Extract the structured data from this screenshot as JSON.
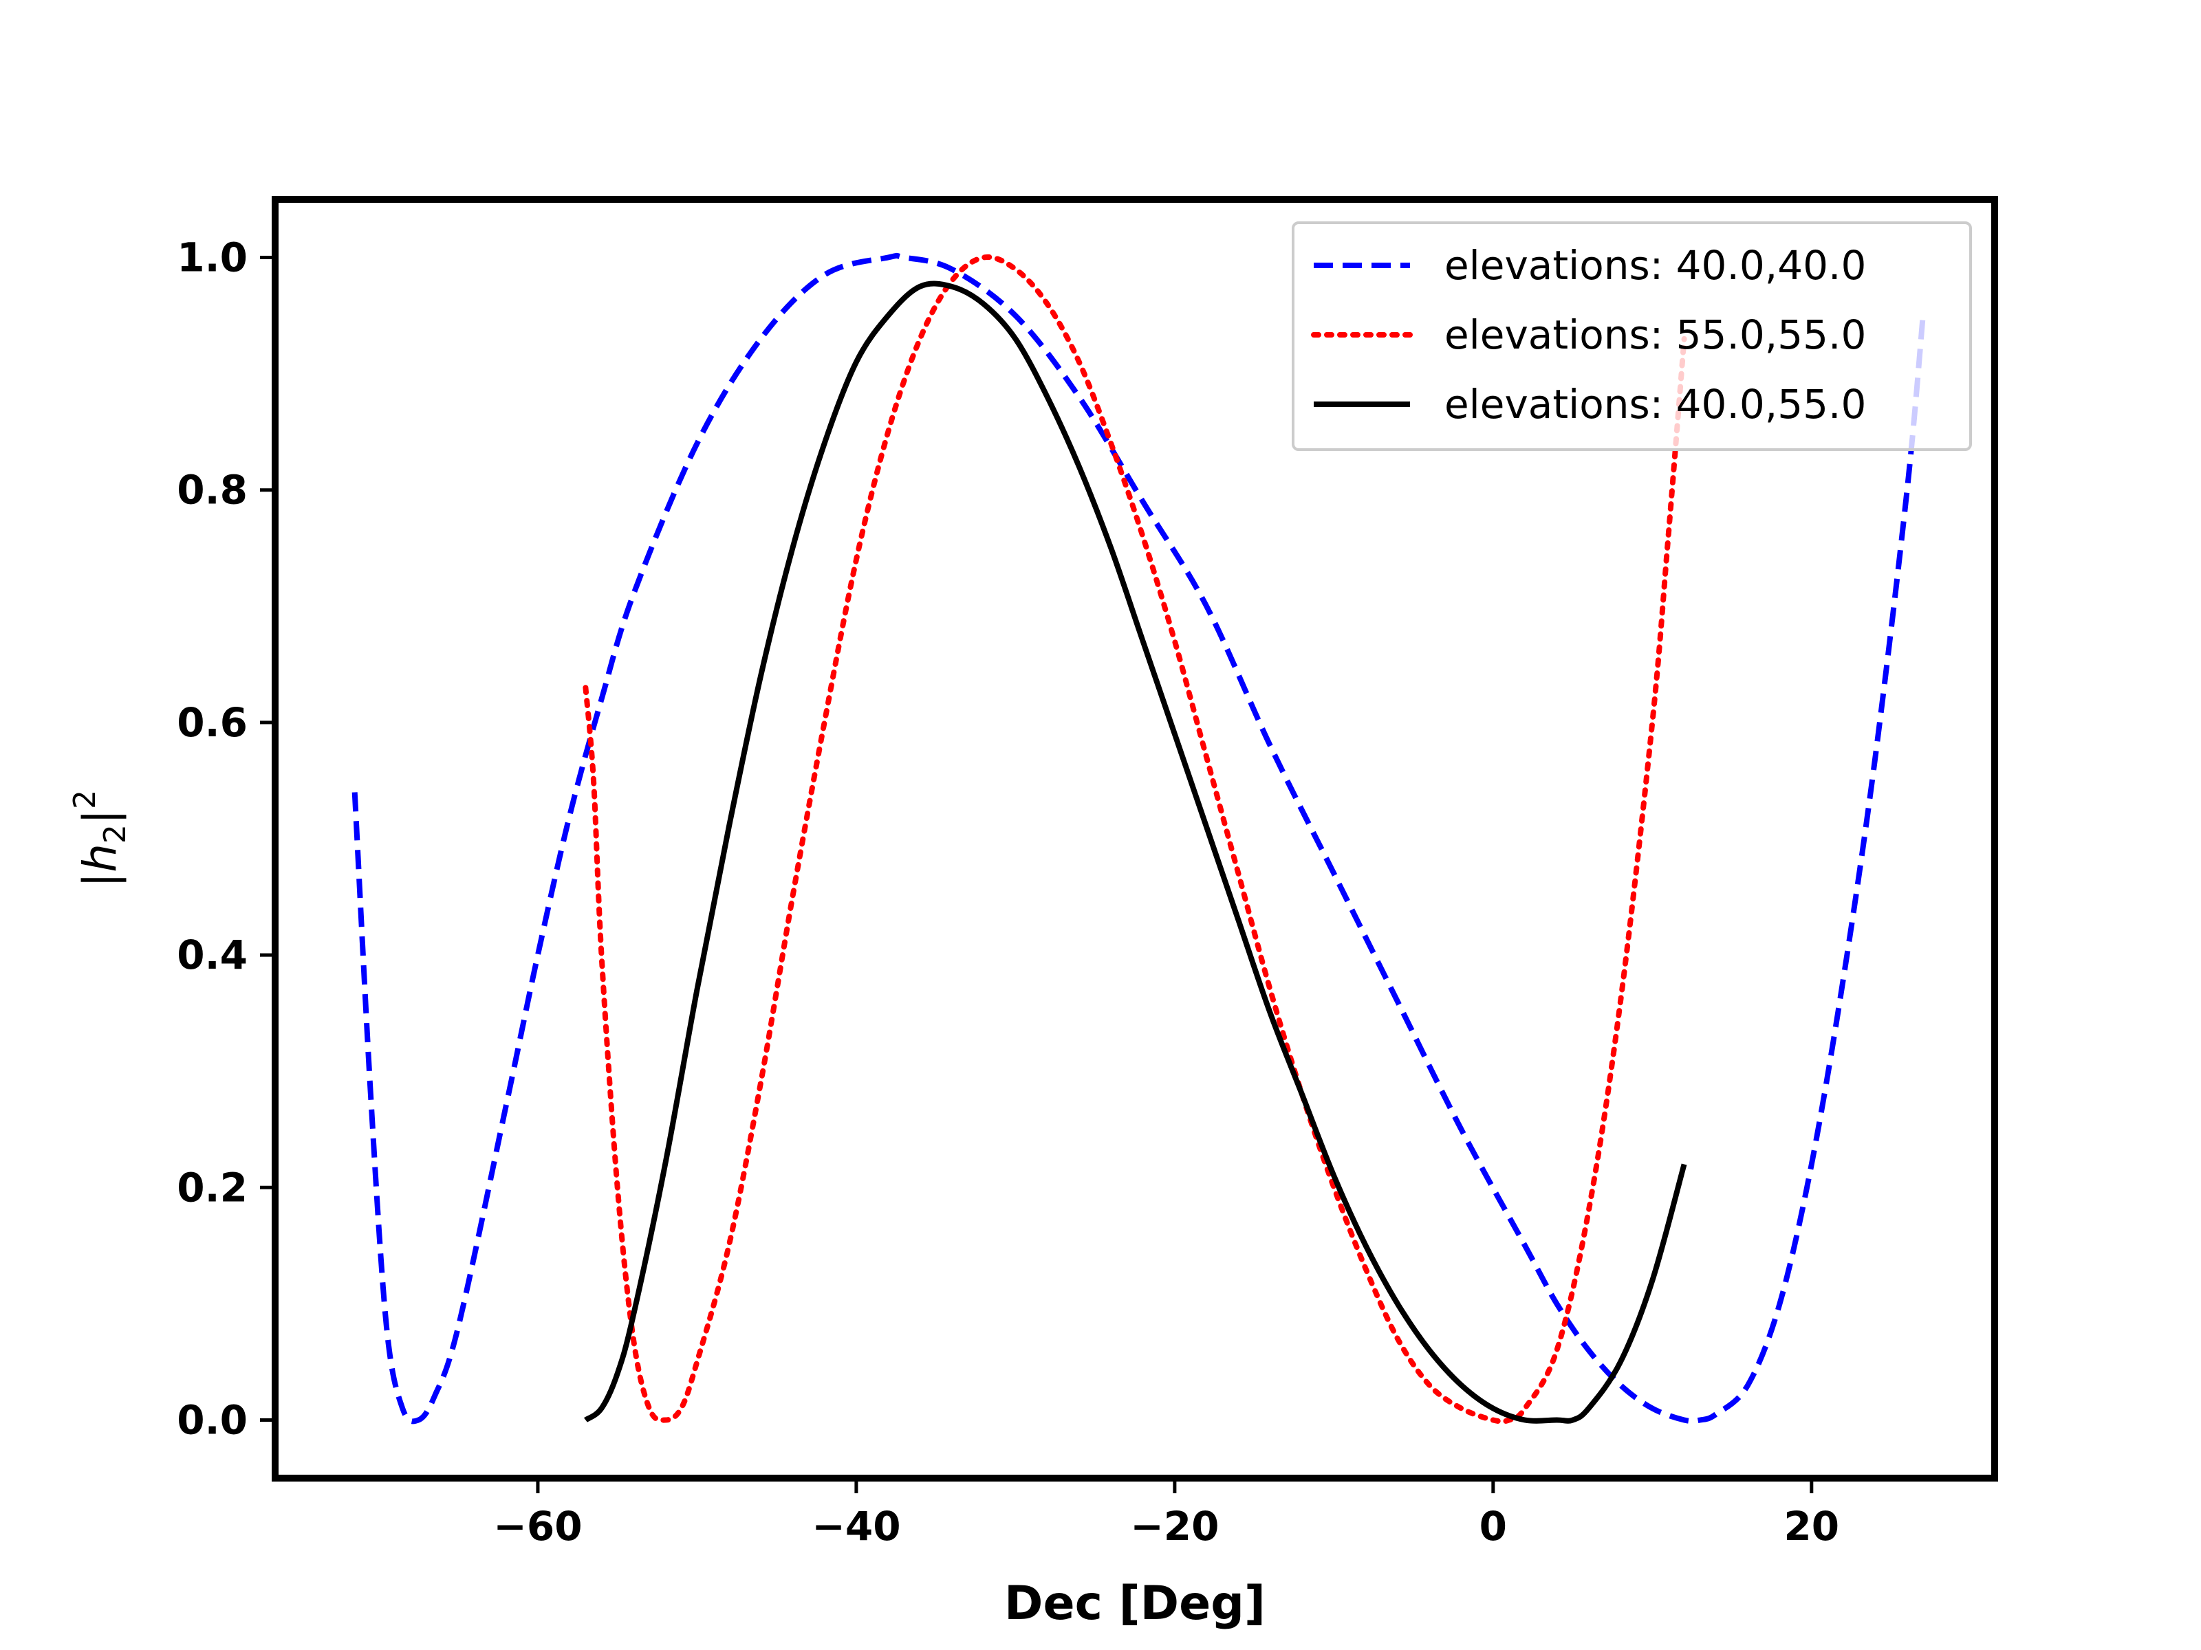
{
  "chart_data": {
    "type": "line",
    "title": "",
    "xlabel": "Dec [Deg]",
    "ylabel": "|h2|²",
    "ylabel_parts": {
      "left_bar": "|",
      "symbol": "h",
      "subscript": "2",
      "right_bar": "|",
      "superscript": "2"
    },
    "xlim": [
      -76.5,
      31.5
    ],
    "ylim": [
      -0.05,
      1.05
    ],
    "xticks": [
      -60,
      -40,
      -20,
      0,
      20
    ],
    "xtick_labels": [
      "−60",
      "−40",
      "−20",
      "0",
      "20"
    ],
    "yticks": [
      0.0,
      0.2,
      0.4,
      0.6,
      0.8,
      1.0
    ],
    "ytick_labels": [
      "0.0",
      "0.2",
      "0.4",
      "0.6",
      "0.8",
      "1.0"
    ],
    "grid": false,
    "legend_position": "top-right",
    "series": [
      {
        "name": "elevations: 40.0,40.0",
        "color": "#0000ff",
        "style": "dashed",
        "x": [
          -71.5,
          -70.5,
          -69.5,
          -68.5,
          -67.5,
          -66.5,
          -65,
          -62,
          -60,
          -58,
          -56,
          -54,
          -50,
          -46,
          -42,
          -38,
          -37,
          -34,
          -30,
          -26,
          -22,
          -18,
          -14,
          -10,
          -6,
          -2,
          2,
          4,
          6,
          8,
          10,
          12,
          13,
          14,
          16,
          18,
          20,
          22,
          24,
          26,
          27
        ],
        "y": [
          0.54,
          0.28,
          0.08,
          0.01,
          0.0,
          0.02,
          0.08,
          0.27,
          0.4,
          0.52,
          0.62,
          0.71,
          0.84,
          0.93,
          0.985,
          1.0,
          1.0,
          0.99,
          0.95,
          0.88,
          0.79,
          0.7,
          0.58,
          0.47,
          0.36,
          0.25,
          0.15,
          0.1,
          0.06,
          0.03,
          0.01,
          0.0,
          0.0,
          0.005,
          0.03,
          0.1,
          0.22,
          0.38,
          0.57,
          0.8,
          0.95
        ]
      },
      {
        "name": "elevations: 55.0,55.0",
        "color": "#ff0000",
        "style": "dotted",
        "x": [
          -57,
          -56.5,
          -56,
          -55,
          -54,
          -53,
          -52,
          -51,
          -50,
          -48,
          -46,
          -44,
          -42,
          -40,
          -38,
          -36,
          -34,
          -32,
          -30,
          -28,
          -26,
          -24,
          -22,
          -20,
          -18,
          -16,
          -14,
          -12,
          -10,
          -8,
          -6,
          -4,
          -2,
          0,
          1,
          2,
          4,
          6,
          8,
          10,
          11,
          12
        ],
        "y": [
          0.63,
          0.55,
          0.4,
          0.2,
          0.07,
          0.01,
          0.0,
          0.01,
          0.05,
          0.15,
          0.29,
          0.45,
          0.6,
          0.74,
          0.85,
          0.93,
          0.98,
          1.0,
          0.99,
          0.96,
          0.91,
          0.84,
          0.76,
          0.67,
          0.57,
          0.47,
          0.37,
          0.28,
          0.2,
          0.13,
          0.07,
          0.03,
          0.01,
          0.0,
          0.0,
          0.01,
          0.06,
          0.18,
          0.36,
          0.6,
          0.76,
          0.93
        ]
      },
      {
        "name": "elevations: 40.0,55.0",
        "color": "#000000",
        "style": "solid",
        "x": [
          -57,
          -56,
          -55,
          -54,
          -52,
          -50,
          -48,
          -46,
          -44,
          -42,
          -40,
          -38,
          -36,
          -34,
          -32,
          -30,
          -28,
          -26,
          -24,
          -22,
          -20,
          -18,
          -16,
          -14,
          -12,
          -10,
          -8,
          -6,
          -4,
          -2,
          0,
          2,
          4,
          5,
          6,
          8,
          10,
          12
        ],
        "y": [
          0.0,
          0.01,
          0.04,
          0.09,
          0.22,
          0.37,
          0.51,
          0.64,
          0.75,
          0.84,
          0.91,
          0.95,
          0.975,
          0.975,
          0.96,
          0.93,
          0.88,
          0.82,
          0.75,
          0.67,
          0.59,
          0.51,
          0.43,
          0.35,
          0.28,
          0.21,
          0.15,
          0.1,
          0.06,
          0.03,
          0.01,
          0.0,
          0.0,
          0.0,
          0.01,
          0.05,
          0.12,
          0.22
        ]
      }
    ]
  }
}
